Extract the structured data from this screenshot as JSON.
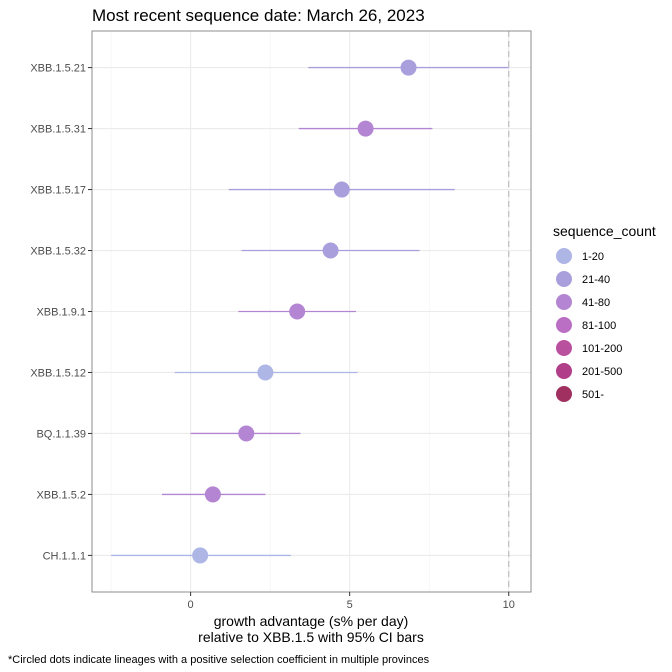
{
  "chart_data": {
    "type": "dot-interval",
    "title": "Most recent sequence date: March 26, 2023",
    "xlabel_line1": "growth advantage (s% per day)",
    "xlabel_line2": "relative to  XBB.1.5  with 95% CI bars",
    "caption": "*Circled dots indicate lineages with a positive selection coefficient in multiple provinces",
    "xlim": [
      -3.1,
      10.7
    ],
    "x_ticks": [
      0,
      5,
      10
    ],
    "x_tick_labels": [
      "0",
      "5",
      "10"
    ],
    "reference_line_x": 10,
    "grid": true,
    "legend": {
      "title": "sequence_count",
      "position": "right",
      "items": [
        {
          "label": "1-20",
          "color": "#aeb6e6"
        },
        {
          "label": "21-40",
          "color": "#aa9fdd"
        },
        {
          "label": "41-80",
          "color": "#b385d2"
        },
        {
          "label": "81-100",
          "color": "#bb6fc4"
        },
        {
          "label": "101-200",
          "color": "#b9519f"
        },
        {
          "label": "201-500",
          "color": "#b13e88"
        },
        {
          "label": "501-",
          "color": "#a0305f"
        }
      ]
    },
    "rows": [
      {
        "lineage": "XBB.1.5.21",
        "estimate": 6.85,
        "lower": 3.7,
        "upper": 10.0,
        "count_bin": "21-40"
      },
      {
        "lineage": "XBB.1.5.31",
        "estimate": 5.5,
        "lower": 3.4,
        "upper": 7.6,
        "count_bin": "41-80"
      },
      {
        "lineage": "XBB.1.5.17",
        "estimate": 4.75,
        "lower": 1.2,
        "upper": 8.3,
        "count_bin": "21-40"
      },
      {
        "lineage": "XBB.1.5.32",
        "estimate": 4.4,
        "lower": 1.6,
        "upper": 7.2,
        "count_bin": "21-40"
      },
      {
        "lineage": "XBB.1.9.1",
        "estimate": 3.35,
        "lower": 1.5,
        "upper": 5.2,
        "count_bin": "41-80"
      },
      {
        "lineage": "XBB.1.5.12",
        "estimate": 2.35,
        "lower": -0.5,
        "upper": 5.25,
        "count_bin": "1-20"
      },
      {
        "lineage": "BQ.1.1.39",
        "estimate": 1.75,
        "lower": 0.0,
        "upper": 3.45,
        "count_bin": "41-80"
      },
      {
        "lineage": "XBB.1.5.2",
        "estimate": 0.7,
        "lower": -0.9,
        "upper": 2.35,
        "count_bin": "41-80"
      },
      {
        "lineage": "CH.1.1.1",
        "estimate": 0.3,
        "lower": -2.5,
        "upper": 3.15,
        "count_bin": "1-20"
      }
    ]
  }
}
